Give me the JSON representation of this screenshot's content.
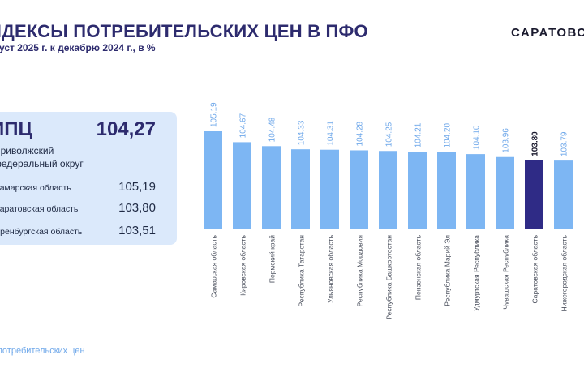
{
  "header": {
    "title": "НДЕКСЫ ПОТРЕБИТЕЛЬСКИХ ЦЕН В ПФО",
    "subtitle": "густ 2025 г. к декабрю 2024 г., в %",
    "brand": "САРАТОВС"
  },
  "panel": {
    "ipc_label": "ИПЦ",
    "ipc_value": "104,27",
    "okrug": "Приволжский федеральный округ",
    "regions": [
      {
        "name": "Самарская область",
        "value": "105,19"
      },
      {
        "name": "Саратовская область",
        "value": "103,80"
      },
      {
        "name": "Оренбургская область",
        "value": "103,51"
      }
    ]
  },
  "footer": {
    "text": "ы потребительских цен"
  },
  "colors": {
    "bar": "#7db6f3",
    "highlight": "#2f2b86",
    "label": "#6fa8ea",
    "panel": "#dbe9fb"
  },
  "chart_data": {
    "type": "bar",
    "title": "",
    "xlabel": "",
    "ylabel": "",
    "categories": [
      "Самарская область",
      "Кировская область",
      "Пермский край",
      "Республика Татарстан",
      "Ульяновская область",
      "Республика Мордовия",
      "Республика Башкортостан",
      "Пензенская область",
      "Республика Марий Эл",
      "Удмуртская Республика",
      "Чувашская Республика",
      "Саратовская область",
      "Нижегородская область"
    ],
    "values": [
      105.19,
      104.67,
      104.48,
      104.33,
      104.31,
      104.28,
      104.25,
      104.21,
      104.2,
      104.1,
      103.96,
      103.8,
      103.79
    ],
    "value_labels": [
      "105.19",
      "104.67",
      "104.48",
      "104.33",
      "104.31",
      "104.28",
      "104.25",
      "104.21",
      "104.20",
      "104.10",
      "103.96",
      "103.80",
      "103.79"
    ],
    "highlight_index": 11,
    "grid": false,
    "legend": "none"
  }
}
